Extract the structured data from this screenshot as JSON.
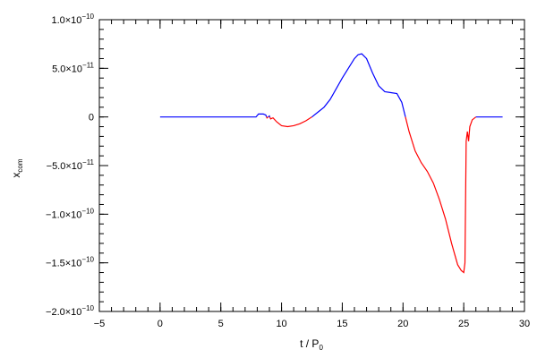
{
  "chart_data": {
    "type": "line",
    "title": "",
    "xlabel": {
      "main": "t / P",
      "sub": "0"
    },
    "ylabel": {
      "main": "x",
      "sub": "com"
    },
    "xlim": [
      -5,
      30
    ],
    "ylim": [
      -2e-10,
      1e-10
    ],
    "x_ticks": [
      {
        "value": -5,
        "label": "−5"
      },
      {
        "value": 0,
        "label": "0"
      },
      {
        "value": 5,
        "label": "5"
      },
      {
        "value": 10,
        "label": "10"
      },
      {
        "value": 15,
        "label": "15"
      },
      {
        "value": 20,
        "label": "20"
      },
      {
        "value": 25,
        "label": "25"
      },
      {
        "value": 30,
        "label": "30"
      }
    ],
    "y_ticks": [
      {
        "value": 1e-10,
        "mant": "1.0×10",
        "exp": "−10"
      },
      {
        "value": 5e-11,
        "mant": "5.0×10",
        "exp": "−11"
      },
      {
        "value": 0,
        "mant": "0",
        "exp": ""
      },
      {
        "value": -5e-11,
        "mant": "−5.0×10",
        "exp": "−11"
      },
      {
        "value": -1e-10,
        "mant": "−1.0×10",
        "exp": "−10"
      },
      {
        "value": -1.5e-10,
        "mant": "−1.5×10",
        "exp": "−10"
      },
      {
        "value": -2e-10,
        "mant": "−2.0×10",
        "exp": "−10"
      }
    ],
    "x_minor_step": 1,
    "y_minor_step": 1e-11,
    "grid": false,
    "colors": {
      "positive": "#0000ff",
      "negative": "#ff0000",
      "axes": "#000000"
    },
    "series": [
      {
        "points": [
          [
            0,
            0
          ],
          [
            7.9,
            0
          ],
          [
            8.1,
            3e-12
          ],
          [
            8.5,
            3e-12
          ],
          [
            8.7,
            2e-12
          ],
          [
            8.8,
            -1e-12
          ],
          [
            9.0,
            1e-12
          ],
          [
            9.1,
            -2e-12
          ],
          [
            9.3,
            -1e-12
          ],
          [
            9.6,
            -5e-12
          ],
          [
            10.0,
            -9e-12
          ],
          [
            10.5,
            -1e-11
          ],
          [
            11.0,
            -9e-12
          ],
          [
            11.5,
            -7e-12
          ],
          [
            12.0,
            -4e-12
          ],
          [
            12.5,
            0
          ],
          [
            13.0,
            5e-12
          ],
          [
            13.5,
            1e-11
          ],
          [
            14.0,
            1.8e-11
          ],
          [
            14.5,
            2.9e-11
          ],
          [
            15.0,
            4e-11
          ],
          [
            15.5,
            5e-11
          ],
          [
            16.0,
            6e-11
          ],
          [
            16.3,
            6.4e-11
          ],
          [
            16.6,
            6.5e-11
          ],
          [
            17.0,
            6e-11
          ],
          [
            17.5,
            4.5e-11
          ],
          [
            18.0,
            3.2e-11
          ],
          [
            18.5,
            2.6e-11
          ],
          [
            19.0,
            2.5e-11
          ],
          [
            19.5,
            2.4e-11
          ],
          [
            19.9,
            1.5e-11
          ],
          [
            20.2,
            0
          ],
          [
            20.5,
            -1.5e-11
          ],
          [
            21.0,
            -3.5e-11
          ],
          [
            21.5,
            -4.7e-11
          ],
          [
            22.0,
            -5.6e-11
          ],
          [
            22.5,
            -6.8e-11
          ],
          [
            23.0,
            -8.5e-11
          ],
          [
            23.5,
            -1.05e-10
          ],
          [
            24.0,
            -1.3e-10
          ],
          [
            24.5,
            -1.52e-10
          ],
          [
            24.8,
            -1.58e-10
          ],
          [
            25.0,
            -1.6e-10
          ],
          [
            25.1,
            -1.5e-10
          ],
          [
            25.2,
            -2.5e-11
          ],
          [
            25.3,
            -1.5e-11
          ],
          [
            25.4,
            -2.5e-11
          ],
          [
            25.5,
            -1e-11
          ],
          [
            25.7,
            -3e-12
          ],
          [
            26.0,
            0
          ],
          [
            28.2,
            0
          ]
        ]
      }
    ]
  }
}
